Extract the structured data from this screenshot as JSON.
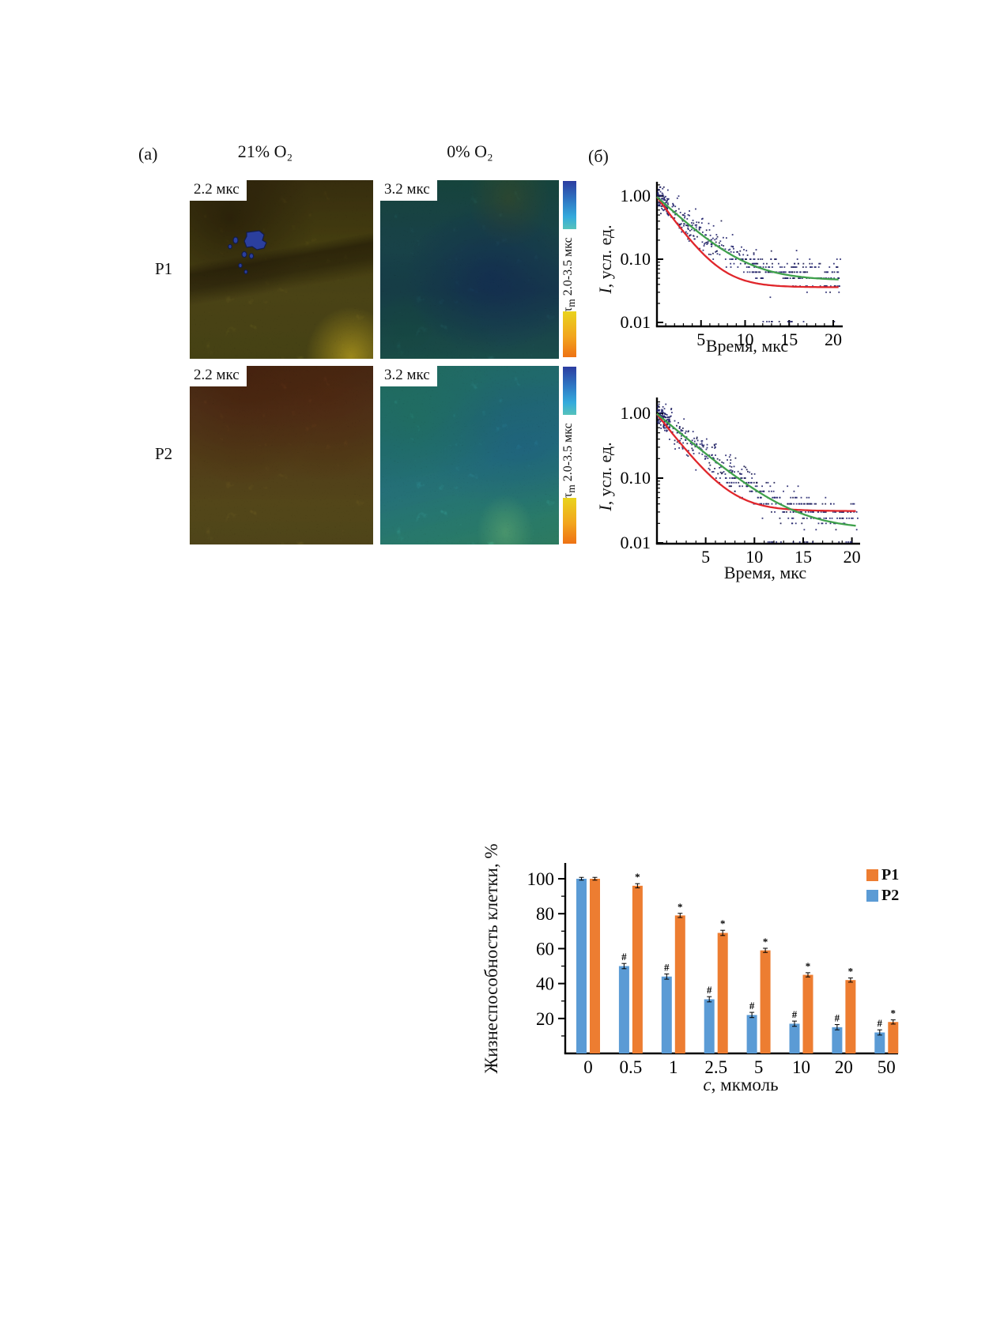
{
  "figure": {
    "panel_a": {
      "label": "(a)",
      "col_headers": [
        "21% O₂",
        "0% O₂"
      ],
      "rows": [
        {
          "label": "P1",
          "tiles": [
            {
              "tag": "2.2 мкс",
              "appearance": "olive-brown FLIM image with dark diagonal streaks and small blue cell cluster",
              "base_colors": [
                "#595013",
                "#473a11",
                "#2b3f9e"
              ]
            },
            {
              "tag": "3.2 мкс",
              "appearance": "dark teal-blue FLIM image",
              "base_colors": [
                "#1f5560",
                "#1d4a62"
              ]
            }
          ]
        },
        {
          "label": "P2",
          "tiles": [
            {
              "tag": "2.2 мкс",
              "appearance": "red-brown to olive FLIM image",
              "base_colors": [
                "#684220",
                "#6d5c20"
              ]
            },
            {
              "tag": "3.2 мкс",
              "appearance": "bright cyan-teal FLIM image with green patches",
              "base_colors": [
                "#2a8a96",
                "#34a08e"
              ]
            }
          ]
        }
      ],
      "colorbar": {
        "tau": "τ",
        "sub": "m",
        "range": " 2.0-3.5 мкс",
        "top_gradient": [
          "#2c3da0",
          "#34abdc",
          "#56c2bb"
        ],
        "bottom_gradient": [
          "#e9d31d",
          "#f2a51d",
          "#ee7214"
        ]
      }
    },
    "panel_b": {
      "label": "(б)"
    }
  },
  "colors": {
    "p1_orange": "#ED7D31",
    "p2_blue": "#5B9BD5",
    "fit_fast_red": "#E0262B",
    "fit_slow_green": "#3FA14C",
    "scatter_navy": "#20216B",
    "axis_black": "#000000"
  },
  "chart_data": [
    {
      "type": "scatter",
      "id": "decay-top",
      "ylabel_var": "I",
      "ylabel_rest": ", усл. ед.",
      "xlabel": "Время, мкс",
      "xlim": [
        0,
        21
      ],
      "ylim_log": [
        0.01,
        1.5
      ],
      "log_y": true,
      "xticks": [
        5,
        10,
        15,
        20
      ],
      "yticks": [
        {
          "v": 1.0,
          "label": "1.00"
        },
        {
          "v": 0.1,
          "label": "0.10"
        },
        {
          "v": 0.01,
          "label": "0.01"
        }
      ],
      "curves": [
        {
          "name": "fit-fast-red",
          "color": "#E0262B",
          "amp": 0.93,
          "tau": 2.2,
          "floor": 0.036
        },
        {
          "name": "fit-slow-green",
          "color": "#3FA14C",
          "amp": 0.92,
          "tau": 3.3,
          "floor": 0.046
        }
      ],
      "scatter": {
        "color": "#20216B",
        "color2": "#15154a",
        "count": 430,
        "extra_early": 70,
        "seed": 7,
        "follow": {
          "amp": 0.95,
          "tau": 3.3,
          "floor": 0.05
        },
        "sigma": 0.3,
        "quant_below": 0.115,
        "levels": [
          0.1,
          0.085,
          0.075,
          0.0625,
          0.05,
          0.0375,
          0.03,
          0.025,
          0.02
        ],
        "baseline_row": 0.0103
      }
    },
    {
      "type": "scatter",
      "id": "decay-bottom",
      "ylabel_var": "I",
      "ylabel_rest": ", усл. ед.",
      "xlabel": "Время, мкс",
      "xlim": [
        0,
        21
      ],
      "ylim_log": [
        0.01,
        1.5
      ],
      "log_y": true,
      "xticks": [
        5,
        10,
        15,
        20
      ],
      "yticks": [
        {
          "v": 1.0,
          "label": "1.00"
        },
        {
          "v": 0.1,
          "label": "0.10"
        },
        {
          "v": 0.01,
          "label": "0.01"
        }
      ],
      "curves": [
        {
          "name": "fit-fast-red",
          "color": "#E0262B",
          "amp": 0.94,
          "tau": 2.2,
          "floor": 0.031
        },
        {
          "name": "fit-slow-green",
          "color": "#3FA14C",
          "amp": 0.97,
          "tau": 3.4,
          "floor": 0.016
        }
      ],
      "scatter": {
        "color": "#20216B",
        "color2": "#15154a",
        "count": 450,
        "extra_early": 80,
        "seed": 13,
        "follow": {
          "amp": 0.97,
          "tau": 3.3,
          "floor": 0.022
        },
        "sigma": 0.3,
        "quant_below": 0.115,
        "levels": [
          0.1,
          0.085,
          0.075,
          0.0625,
          0.05,
          0.04,
          0.03,
          0.024,
          0.02,
          0.016
        ],
        "baseline_row": 0.0103
      }
    },
    {
      "type": "bar",
      "id": "viability-bar",
      "categories": [
        "0",
        "0.5",
        "1",
        "2.5",
        "5",
        "10",
        "20",
        "50"
      ],
      "series": [
        {
          "name": "P1",
          "color": "#ED7D31",
          "symbol": "*",
          "values": [
            100,
            96,
            79,
            69,
            59,
            45,
            42,
            18
          ],
          "errors": [
            0.8,
            1.2,
            1.2,
            1.5,
            1.2,
            1.2,
            1.2,
            1.2
          ]
        },
        {
          "name": "P2",
          "color": "#5B9BD5",
          "symbol": "#",
          "values": [
            100,
            50,
            44,
            31,
            22,
            17,
            15,
            12
          ],
          "errors": [
            0.8,
            1.5,
            1.5,
            1.5,
            1.5,
            1.5,
            1.5,
            1.5
          ]
        }
      ],
      "bar_order": [
        "P2",
        "P1"
      ],
      "ylabel": "Жизнеспособность клетки, %",
      "xlabel_var": "c",
      "xlabel_rest": ", мкмоль",
      "yticks": [
        20,
        40,
        60,
        80,
        100
      ],
      "ylim": [
        0,
        107
      ],
      "grid": false,
      "legend": [
        "P1",
        "P2"
      ],
      "legend_position": "top-right"
    }
  ]
}
